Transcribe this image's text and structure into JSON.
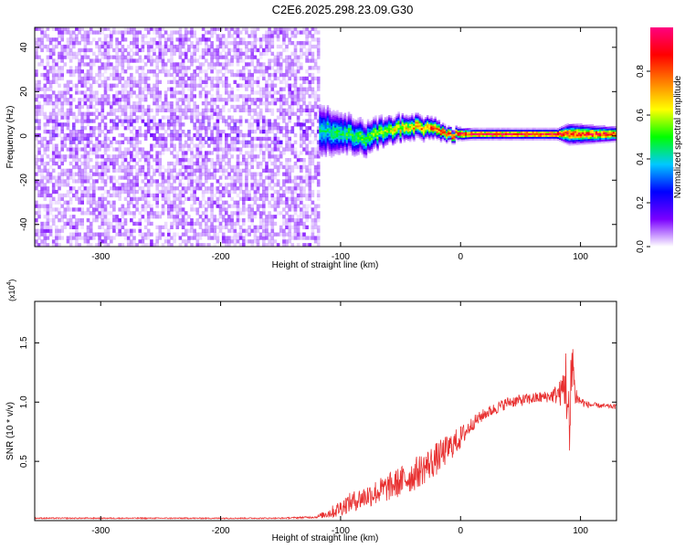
{
  "title": "C2E6.2025.298.23.09.G30",
  "chart_data": [
    {
      "type": "heatmap",
      "xlabel": "Height of straight line (km)",
      "ylabel": "Frequency (Hz)",
      "xlim": [
        -355,
        130
      ],
      "ylim": [
        -50,
        49
      ],
      "xticks": [
        -300,
        -200,
        -100,
        0,
        100
      ],
      "xtick_labels": [
        "-300",
        "-200",
        "-100",
        "0",
        "100"
      ],
      "yticks": [
        -40,
        -20,
        0,
        20,
        40
      ],
      "ytick_labels": [
        "-40",
        "-20",
        "0",
        "20",
        "40"
      ],
      "colorbar": {
        "label": "Normalized spectral amplitude",
        "range": [
          0,
          1
        ],
        "ticks": [
          0,
          0.2,
          0.4,
          0.6,
          0.8
        ],
        "tick_labels": [
          "0.0",
          "0.2",
          "0.4",
          "0.6",
          "0.8"
        ],
        "colormap": [
          "#ffffff",
          "#7a00ff",
          "#0000ff",
          "#00c8ff",
          "#00ff00",
          "#ffff00",
          "#ff8000",
          "#ff0000",
          "#ff0080"
        ]
      },
      "noise_region": {
        "x_range": [
          -355,
          -118
        ],
        "freq_range": [
          -50,
          49
        ],
        "amplitude_range": [
          0.02,
          0.12
        ]
      },
      "signal_track": [
        {
          "x": -118,
          "freq_center": 2.5,
          "freq_halfwidth": 8,
          "peak_amplitude": 0.45
        },
        {
          "x": -100,
          "freq_center": 1.5,
          "freq_halfwidth": 6,
          "peak_amplitude": 0.5
        },
        {
          "x": -80,
          "freq_center": -1.5,
          "freq_halfwidth": 5,
          "peak_amplitude": 0.55
        },
        {
          "x": -60,
          "freq_center": 2.5,
          "freq_halfwidth": 4,
          "peak_amplitude": 0.65
        },
        {
          "x": -40,
          "freq_center": 3.5,
          "freq_halfwidth": 3.5,
          "peak_amplitude": 0.75
        },
        {
          "x": -25,
          "freq_center": 2.5,
          "freq_halfwidth": 3,
          "peak_amplitude": 0.85
        },
        {
          "x": -10,
          "freq_center": 0.5,
          "freq_halfwidth": 2,
          "peak_amplitude": 0.95
        },
        {
          "x": 10,
          "freq_center": 0.5,
          "freq_halfwidth": 1.5,
          "peak_amplitude": 1.0
        },
        {
          "x": 80,
          "freq_center": 0.5,
          "freq_halfwidth": 1.5,
          "peak_amplitude": 1.0
        },
        {
          "x": 90,
          "freq_center": 0.5,
          "freq_halfwidth": 3,
          "peak_amplitude": 0.9
        },
        {
          "x": 130,
          "freq_center": 0.5,
          "freq_halfwidth": 2,
          "peak_amplitude": 0.95
        }
      ]
    },
    {
      "type": "line",
      "xlabel": "Height of straight line (km)",
      "ylabel": "SNR (10 * v/v)",
      "y_multiplier_label": "(x10",
      "y_multiplier_exponent": "4",
      "y_multiplier_suffix": ")",
      "xlim": [
        -355,
        130
      ],
      "ylim": [
        0,
        1.85
      ],
      "xticks": [
        -300,
        -200,
        -100,
        0,
        100
      ],
      "xtick_labels": [
        "-300",
        "-200",
        "-100",
        "0",
        "100"
      ],
      "yticks": [
        0.5,
        1.0,
        1.5
      ],
      "ytick_labels": [
        "0.5",
        "1.0",
        "1.5"
      ],
      "color": "#e83030",
      "series": [
        {
          "x": [
            -355,
            -300,
            -250,
            -200,
            -150,
            -120,
            -105,
            -95,
            -80,
            -60,
            -40,
            -20,
            0,
            10,
            20,
            30,
            40,
            60,
            75,
            84,
            88,
            91,
            93,
            95,
            98,
            105,
            115,
            130
          ],
          "y": [
            0.02,
            0.02,
            0.02,
            0.02,
            0.02,
            0.03,
            0.08,
            0.14,
            0.2,
            0.28,
            0.38,
            0.52,
            0.7,
            0.82,
            0.9,
            0.95,
            1.0,
            1.03,
            1.05,
            1.08,
            1.2,
            0.6,
            1.5,
            1.1,
            1.02,
            0.98,
            0.97,
            0.96
          ],
          "noise_amplitude": [
            0.005,
            0.005,
            0.005,
            0.005,
            0.005,
            0.01,
            0.06,
            0.08,
            0.1,
            0.12,
            0.14,
            0.14,
            0.1,
            0.06,
            0.05,
            0.05,
            0.05,
            0.05,
            0.05,
            0.12,
            0.3,
            0.45,
            0.35,
            0.15,
            0.05,
            0.03,
            0.02,
            0.02
          ]
        }
      ]
    }
  ]
}
